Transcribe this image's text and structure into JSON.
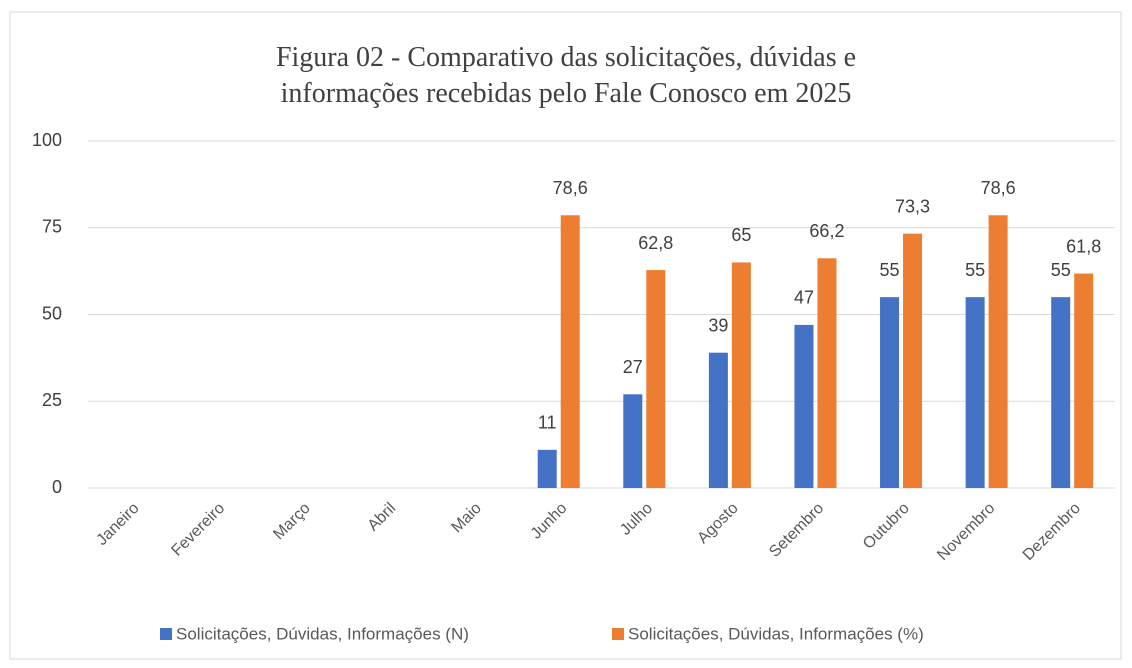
{
  "chart_data": {
    "type": "bar",
    "title": "Figura 02 - Comparativo das solicitações, dúvidas e informações recebidas pelo Fale Conosco em 2025",
    "categories": [
      "Janeiro",
      "Fevereiro",
      "Março",
      "Abril",
      "Maio",
      "Junho",
      "Julho",
      "Agosto",
      "Setembro",
      "Outubro",
      "Novembro",
      "Dezembro"
    ],
    "series": [
      {
        "name": "Solicitações, Dúvidas, Informações (N)",
        "color": "#4472c4",
        "values": [
          null,
          null,
          null,
          null,
          null,
          11,
          27,
          39,
          47,
          55,
          55,
          55
        ]
      },
      {
        "name": "Solicitações, Dúvidas, Informações (%)",
        "color": "#ed7d31",
        "values": [
          null,
          null,
          null,
          null,
          null,
          78.6,
          62.8,
          65,
          66.2,
          73.3,
          78.6,
          61.8
        ],
        "value_labels": [
          null,
          null,
          null,
          null,
          null,
          "78,6",
          "62,8",
          "65",
          "66,2",
          "73,3",
          "78,6",
          "61,8"
        ]
      }
    ],
    "ylim": [
      0,
      100
    ],
    "yticks": [
      0,
      25,
      50,
      75,
      100
    ],
    "grid": true,
    "legend": "bottom"
  }
}
